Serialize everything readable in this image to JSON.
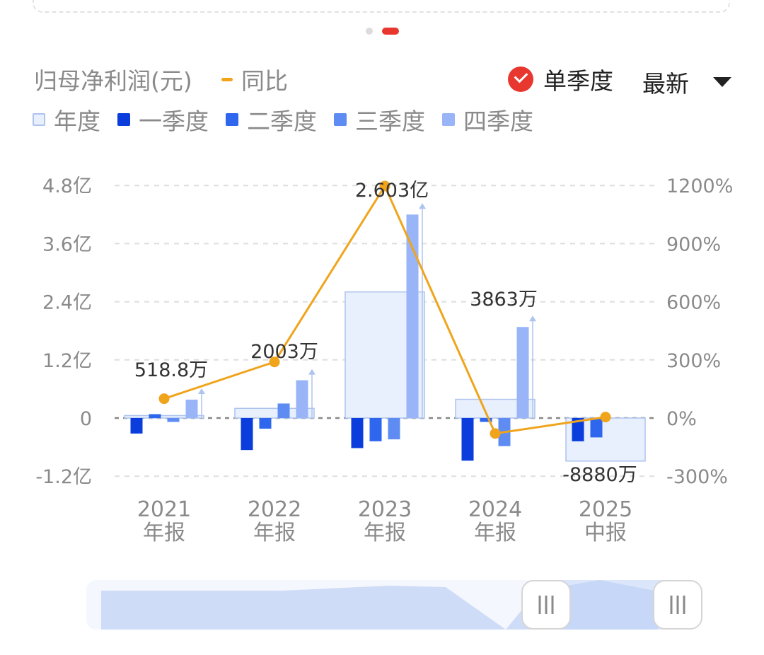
{
  "header": {
    "title": "归母净利润(元)",
    "yoy_label": "同比",
    "single_quarter_label": "单季度",
    "latest_label": "最新"
  },
  "colors": {
    "annual": "#e8effd",
    "annual_border": "#aec4ee",
    "q1": "#0a3ddb",
    "q2": "#2f66ee",
    "q3": "#5e8cf2",
    "q4": "#99b5f7",
    "yoy": "#f0a41c",
    "accent": "#e8372e"
  },
  "legend": [
    {
      "key": "annual",
      "label": "年度"
    },
    {
      "key": "q1",
      "label": "一季度"
    },
    {
      "key": "q2",
      "label": "二季度"
    },
    {
      "key": "q3",
      "label": "三季度"
    },
    {
      "key": "q4",
      "label": "四季度"
    }
  ],
  "chart_data": {
    "type": "bar",
    "categories": [
      {
        "year": "2021",
        "kind": "年报"
      },
      {
        "year": "2022",
        "kind": "年报"
      },
      {
        "year": "2023",
        "kind": "年报"
      },
      {
        "year": "2024",
        "kind": "年报"
      },
      {
        "year": "2025",
        "kind": "中报"
      }
    ],
    "y_left": {
      "ticks": [
        "4.8亿",
        "3.6亿",
        "2.4亿",
        "1.2亿",
        "0",
        "-1.2亿"
      ],
      "values": [
        4.8,
        3.6,
        2.4,
        1.2,
        0,
        -1.2
      ],
      "unit": "亿"
    },
    "y_right": {
      "ticks": [
        "1200%",
        "900%",
        "600%",
        "300%",
        "0%",
        "-300%"
      ],
      "values": [
        1200,
        900,
        600,
        300,
        0,
        -300
      ]
    },
    "series": [
      {
        "name": "年度",
        "key": "annual",
        "values": [
          0.0519,
          0.2003,
          2.603,
          0.3863,
          -0.888
        ]
      },
      {
        "name": "一季度",
        "key": "q1",
        "values": [
          -0.32,
          -0.66,
          -0.62,
          -0.88,
          -0.48
        ]
      },
      {
        "name": "二季度",
        "key": "q2",
        "values": [
          0.08,
          -0.22,
          -0.48,
          -0.08,
          -0.4
        ]
      },
      {
        "name": "三季度",
        "key": "q3",
        "values": [
          -0.08,
          0.3,
          -0.44,
          -0.58,
          null
        ]
      },
      {
        "name": "四季度",
        "key": "q4",
        "values": [
          0.38,
          0.78,
          4.2,
          1.88,
          null
        ]
      },
      {
        "name": "同比",
        "key": "yoy",
        "values": [
          100,
          290,
          1200,
          -80,
          5
        ]
      }
    ],
    "annual_labels": [
      "518.8万",
      "2003万",
      "2.603亿",
      "3863万",
      "-8880万"
    ]
  }
}
